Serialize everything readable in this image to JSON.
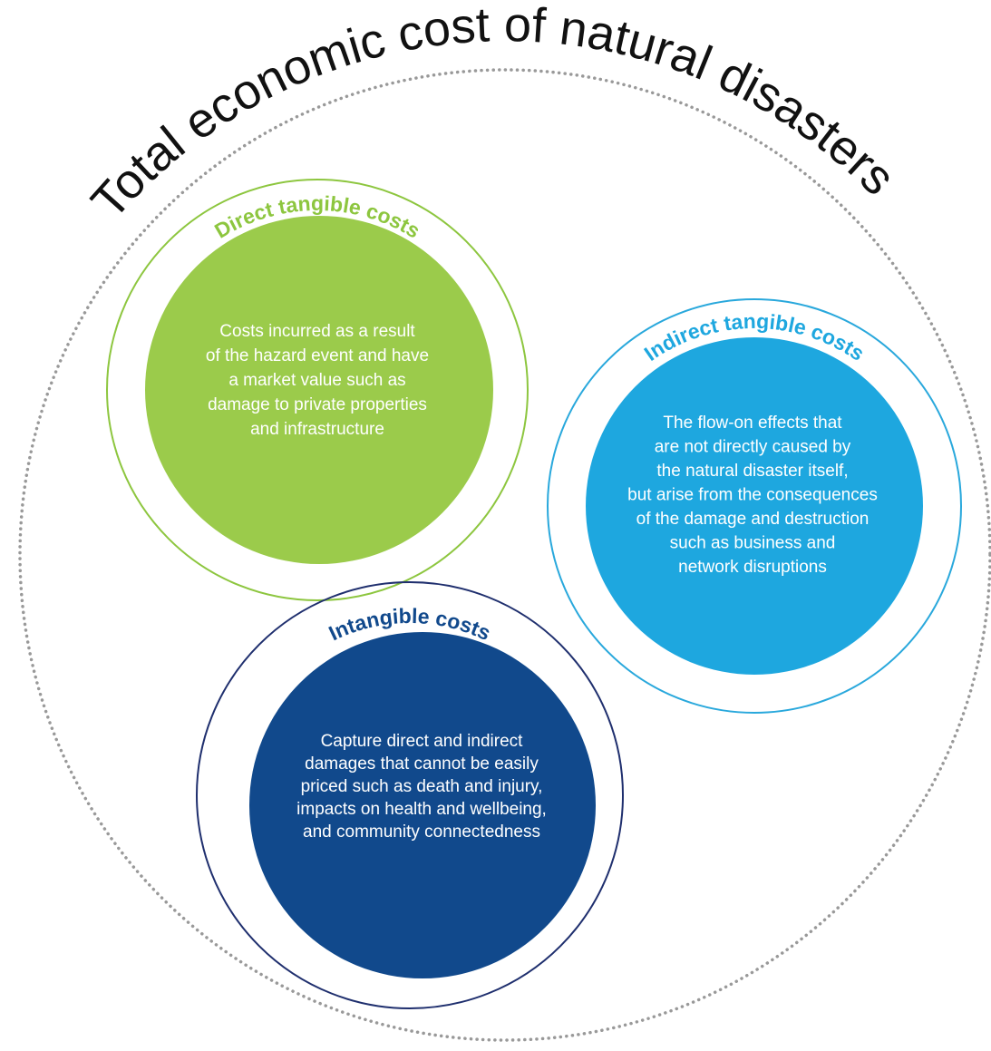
{
  "title": "Total economic cost of natural disasters",
  "nodes": [
    {
      "title": "Direct tangible costs",
      "lines": [
        "Costs incurred as a result",
        "of the hazard event and have",
        "a market value such as",
        "damage to private properties",
        "and infrastructure"
      ]
    },
    {
      "title": "Indirect tangible costs",
      "lines": [
        "The flow-on effects that",
        "are not directly caused by",
        "the natural disaster itself,",
        "but arise from the consequences",
        "of the damage and destruction",
        "such as business and",
        "network disruptions"
      ]
    },
    {
      "title": "Intangible costs",
      "lines": [
        "Capture direct and indirect",
        "damages that cannot be easily",
        "priced such as death and injury,",
        "impacts on health and wellbeing,",
        "and community connectedness"
      ]
    }
  ]
}
